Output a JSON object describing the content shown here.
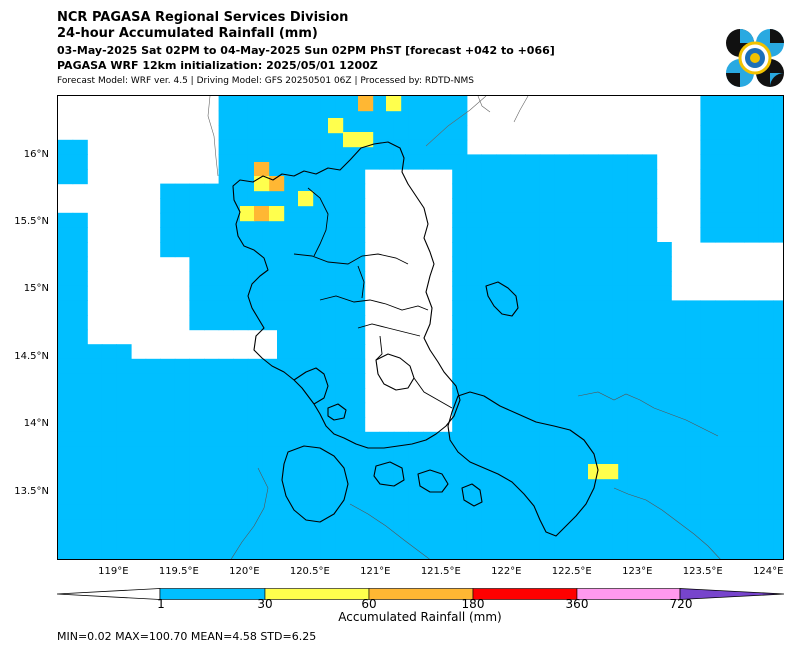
{
  "header": {
    "title": "NCR PAGASA Regional Services Division",
    "subtitle": "24-hour Accumulated Rainfall (mm)",
    "period": "03-May-2025 Sat 02PM to 04-May-2025 Sun 02PM PhST [forecast +042 to +066]",
    "init": "PAGASA WRF 12km initialization: 2025/05/01 1200Z",
    "model_info": "Forecast Model: WRF ver. 4.5 | Driving Model: GFS 20250501 06Z | Processed by: RDTD-NMS"
  },
  "map": {
    "lat_labels": [
      "16°N",
      "15.5°N",
      "15°N",
      "14.5°N",
      "14°N",
      "13.5°N"
    ],
    "lon_labels": [
      "119°E",
      "119.5°E",
      "120°E",
      "120.5°E",
      "121°E",
      "121.5°E",
      "122°E",
      "122.5°E",
      "123°E",
      "123.5°E",
      "124°E"
    ],
    "lat_values": [
      16,
      15.5,
      15,
      14.5,
      14,
      13.5
    ],
    "lon_values": [
      119,
      119.5,
      120,
      120.5,
      121,
      121.5,
      122,
      122.5,
      123,
      123.5,
      124
    ],
    "extent": {
      "lon_min": 118.57,
      "lon_max": 124.12,
      "lat_min": 13.0,
      "lat_max": 16.45
    },
    "colors": {
      "rain_1_30": "#00bfff",
      "rain_30_60": "#ffff4d",
      "rain_60_180": "#ffb733",
      "rain_180_360": "#ff0000",
      "rain_360_720": "#ff99ee",
      "rain_720_plus": "#7744cc"
    }
  },
  "colorbar": {
    "ticks": [
      "1",
      "30",
      "60",
      "180",
      "360",
      "720"
    ],
    "label": "Accumulated Rainfall (mm)"
  },
  "stats": "MIN=0.02   MAX=100.70   MEAN=4.58   STD=6.25"
}
